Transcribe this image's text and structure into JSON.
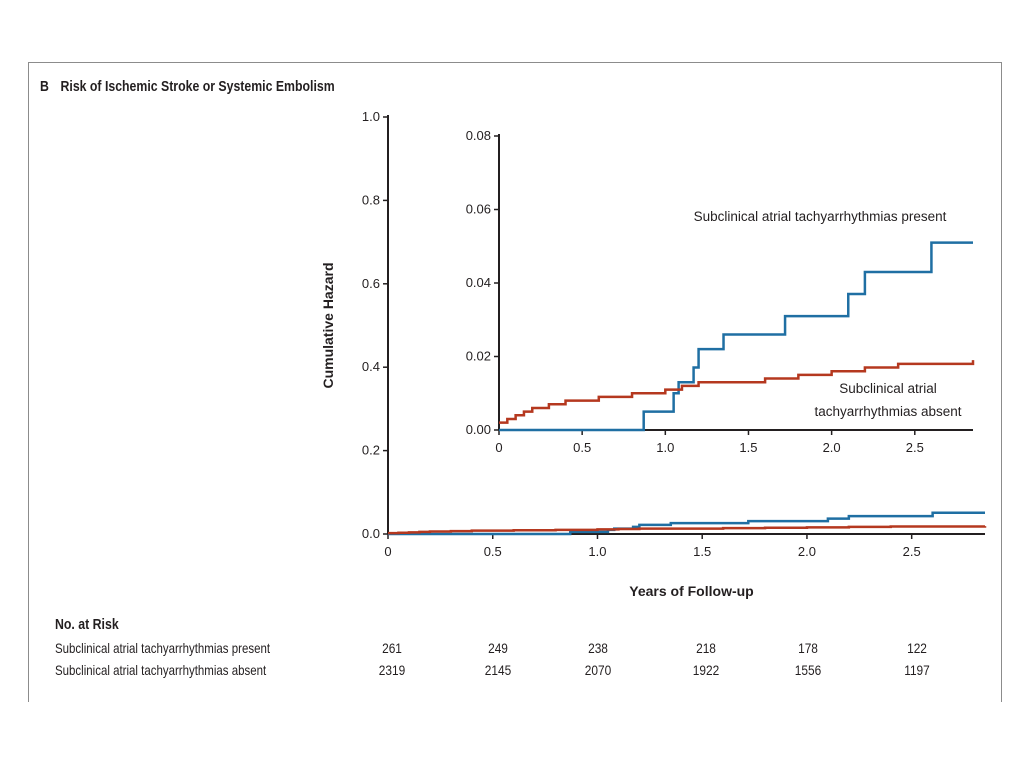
{
  "panel": {
    "letter": "B",
    "title": "Risk of Ischemic Stroke or Systemic Embolism"
  },
  "chart_data": [
    {
      "name": "main",
      "type": "line",
      "step": true,
      "xlabel": "Years of Follow-up",
      "ylabel": "Cumulative Hazard",
      "xlim": [
        0,
        2.85
      ],
      "ylim": [
        0,
        1.0
      ],
      "x_ticks": [
        0,
        0.5,
        1.0,
        1.5,
        2.0,
        2.5
      ],
      "x_tick_labels": [
        "0",
        "0.5",
        "1.0",
        "1.5",
        "2.0",
        "2.5"
      ],
      "y_ticks": [
        0,
        0.2,
        0.4,
        0.6,
        0.8,
        1.0
      ],
      "y_tick_labels": [
        "0.0",
        "0.2",
        "0.4",
        "0.6",
        "0.8",
        "1.0"
      ],
      "grid": false,
      "series": [
        {
          "key": "present",
          "color": "#1f6fa3",
          "points": [
            [
              0,
              0
            ],
            [
              0.87,
              0
            ],
            [
              0.87,
              0.005
            ],
            [
              1.05,
              0.005
            ],
            [
              1.05,
              0.01
            ],
            [
              1.08,
              0.01
            ],
            [
              1.08,
              0.013
            ],
            [
              1.17,
              0.013
            ],
            [
              1.17,
              0.017
            ],
            [
              1.2,
              0.017
            ],
            [
              1.2,
              0.022
            ],
            [
              1.35,
              0.022
            ],
            [
              1.35,
              0.026
            ],
            [
              1.72,
              0.026
            ],
            [
              1.72,
              0.031
            ],
            [
              2.1,
              0.031
            ],
            [
              2.1,
              0.037
            ],
            [
              2.2,
              0.037
            ],
            [
              2.2,
              0.043
            ],
            [
              2.6,
              0.043
            ],
            [
              2.6,
              0.051
            ],
            [
              2.85,
              0.051
            ]
          ]
        },
        {
          "key": "absent",
          "color": "#b5381f",
          "points": [
            [
              0,
              0.002
            ],
            [
              0.05,
              0.003
            ],
            [
              0.1,
              0.004
            ],
            [
              0.15,
              0.005
            ],
            [
              0.2,
              0.006
            ],
            [
              0.3,
              0.007
            ],
            [
              0.4,
              0.008
            ],
            [
              0.6,
              0.009
            ],
            [
              0.8,
              0.01
            ],
            [
              1.0,
              0.011
            ],
            [
              1.1,
              0.012
            ],
            [
              1.2,
              0.013
            ],
            [
              1.4,
              0.013
            ],
            [
              1.6,
              0.014
            ],
            [
              1.8,
              0.015
            ],
            [
              2.0,
              0.016
            ],
            [
              2.2,
              0.017
            ],
            [
              2.4,
              0.018
            ],
            [
              2.6,
              0.018
            ],
            [
              2.85,
              0.019
            ]
          ]
        }
      ]
    },
    {
      "name": "inset",
      "type": "line",
      "step": true,
      "xlim": [
        0,
        2.85
      ],
      "ylim": [
        0,
        0.08
      ],
      "x_ticks": [
        0,
        0.5,
        1.0,
        1.5,
        2.0,
        2.5
      ],
      "x_tick_labels": [
        "0",
        "0.5",
        "1.0",
        "1.5",
        "2.0",
        "2.5"
      ],
      "y_ticks": [
        0,
        0.02,
        0.04,
        0.06,
        0.08
      ],
      "y_tick_labels": [
        "0.00",
        "0.02",
        "0.04",
        "0.06",
        "0.08"
      ],
      "grid": false,
      "annotations": [
        {
          "key": "present",
          "lines": [
            "Subclinical atrial tachyarrhythmias present"
          ]
        },
        {
          "key": "absent",
          "lines": [
            "Subclinical atrial",
            "tachyarrhythmias absent"
          ]
        }
      ]
    }
  ],
  "risk_table": {
    "heading": "No. at Risk",
    "rows": [
      {
        "label": "Subclinical atrial tachyarrhythmias present",
        "values": [
          "261",
          "249",
          "238",
          "218",
          "178",
          "122"
        ]
      },
      {
        "label": "Subclinical atrial tachyarrhythmias absent",
        "values": [
          "2319",
          "2145",
          "2070",
          "1922",
          "1556",
          "1197"
        ]
      }
    ]
  }
}
